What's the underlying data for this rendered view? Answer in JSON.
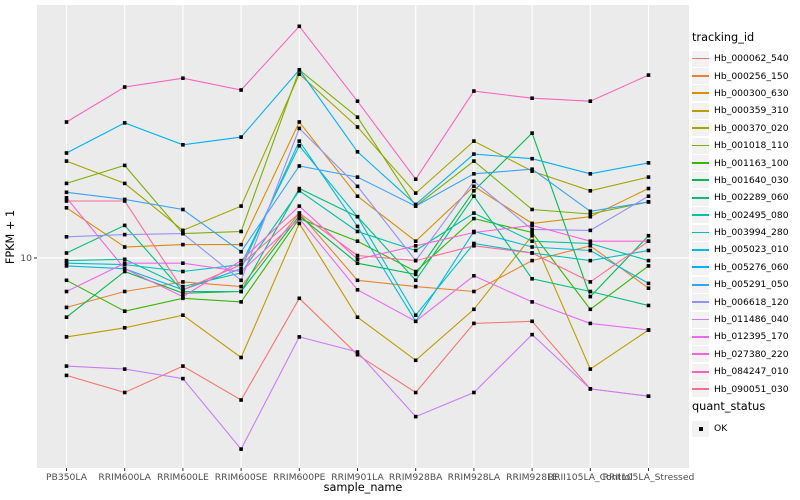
{
  "figure": {
    "background": "#FFFFFF",
    "panel_background": "#EBEBEB",
    "gridline_color": "#FFFFFF",
    "tick_text_color": "#4D4D4D",
    "axis_text_color": "#000000"
  },
  "chart_data": {
    "type": "line",
    "title": "",
    "xlabel": "sample_name",
    "ylabel": "FPKM + 1",
    "y_scale": "log10",
    "y_ticks": [
      10
    ],
    "ylim": [
      2.2,
      61
    ],
    "grid": "major-white-on-gray",
    "legend_position": "right",
    "point_shape": "filled-square",
    "point_color": "#000000",
    "categories": [
      "PB350LA",
      "RRIM600LA",
      "RRIM600LE",
      "RRIM600SE",
      "RRIM600PE",
      "RRIM901LA",
      "RRIM928BA",
      "RRIM928LA",
      "RRIM928LE",
      "RRII105LA_Control",
      "RRII105LA_Stressed"
    ],
    "series": [
      {
        "name": "Hb_000062_540",
        "color": "#F8766D",
        "values": [
          4.0,
          3.5,
          4.3,
          3.3,
          7.3,
          4.7,
          3.5,
          6.0,
          6.1,
          3.6,
          3.4
        ]
      },
      {
        "name": "Hb_000256_150",
        "color": "#EA8331",
        "values": [
          6.8,
          7.7,
          8.3,
          8.0,
          14.2,
          8.4,
          8.0,
          7.7,
          9.8,
          11.0,
          7.9
        ]
      },
      {
        "name": "Hb_000300_630",
        "color": "#D89000",
        "values": [
          14.8,
          10.9,
          11.1,
          11.1,
          28.9,
          16.2,
          11.4,
          17.5,
          13.1,
          13.8,
          17.2
        ]
      },
      {
        "name": "Hb_000359_310",
        "color": "#C09B00",
        "values": [
          5.4,
          5.8,
          6.4,
          4.6,
          13.1,
          6.3,
          4.5,
          6.7,
          11.9,
          4.2,
          5.7
        ]
      },
      {
        "name": "Hb_000370_020",
        "color": "#A3A500",
        "values": [
          21.3,
          17.9,
          12.4,
          15.0,
          42.0,
          27.8,
          16.6,
          24.9,
          19.7,
          16.9,
          18.8
        ]
      },
      {
        "name": "Hb_001018_110",
        "color": "#7CAE00",
        "values": [
          17.9,
          20.6,
          12.1,
          12.3,
          43.4,
          30.0,
          15.0,
          21.3,
          14.6,
          14.1,
          15.5
        ]
      },
      {
        "name": "Hb_001163_100",
        "color": "#39B600",
        "values": [
          8.4,
          6.6,
          7.3,
          7.1,
          13.6,
          11.4,
          9.0,
          13.6,
          12.2,
          6.7,
          9.4
        ]
      },
      {
        "name": "Hb_001640_030",
        "color": "#00BB4E",
        "values": [
          6.3,
          9.0,
          7.6,
          7.7,
          13.9,
          9.6,
          8.8,
          16.9,
          26.5,
          7.4,
          11.9
        ]
      },
      {
        "name": "Hb_002289_060",
        "color": "#00BF7D",
        "values": [
          10.4,
          12.9,
          7.7,
          7.7,
          17.2,
          13.8,
          8.4,
          16.2,
          8.5,
          7.7,
          6.9
        ]
      },
      {
        "name": "Hb_002495_080",
        "color": "#00C1A3",
        "values": [
          9.8,
          9.9,
          8.0,
          8.9,
          16.9,
          12.3,
          10.6,
          14.2,
          11.4,
          11.2,
          9.8
        ]
      },
      {
        "name": "Hb_003994_280",
        "color": "#00BFC4",
        "values": [
          9.6,
          9.5,
          9.0,
          9.5,
          24.0,
          13.8,
          6.4,
          11.2,
          10.4,
          9.8,
          10.6
        ]
      },
      {
        "name": "Hb_005023_010",
        "color": "#00BAE0",
        "values": [
          9.4,
          9.2,
          7.8,
          9.2,
          24.9,
          12.8,
          6.1,
          12.3,
          10.9,
          10.6,
          8.2
        ]
      },
      {
        "name": "Hb_005276_060",
        "color": "#00B0F6",
        "values": [
          22.7,
          28.7,
          24.2,
          25.7,
          43.4,
          22.9,
          15.2,
          22.5,
          21.7,
          19.3,
          21.0
        ]
      },
      {
        "name": "Hb_005291_050",
        "color": "#35A2FF",
        "values": [
          16.7,
          15.8,
          14.6,
          10.5,
          20.5,
          18.8,
          15.0,
          19.3,
          20.0,
          14.4,
          15.5
        ]
      },
      {
        "name": "Hb_006618_120",
        "color": "#9590FF",
        "values": [
          11.8,
          12.0,
          12.1,
          8.4,
          27.5,
          17.5,
          9.8,
          18.2,
          12.5,
          12.4,
          16.2
        ]
      },
      {
        "name": "Hb_011486_040",
        "color": "#C77CFF",
        "values": [
          4.3,
          4.2,
          3.9,
          2.25,
          5.4,
          4.8,
          2.9,
          3.5,
          5.5,
          3.6,
          3.4
        ]
      },
      {
        "name": "Hb_012395_170",
        "color": "#E76BF3",
        "values": [
          7.7,
          9.6,
          9.6,
          9.0,
          13.6,
          7.8,
          6.1,
          8.7,
          7.1,
          6.0,
          5.7
        ]
      },
      {
        "name": "Hb_027380_220",
        "color": "#FA62DB",
        "values": [
          16.0,
          9.2,
          7.4,
          9.8,
          15.0,
          9.9,
          11.0,
          12.2,
          12.9,
          11.4,
          11.4
        ]
      },
      {
        "name": "Hb_084247_010",
        "color": "#FF62BC",
        "values": [
          28.9,
          38.0,
          40.7,
          37.1,
          61.0,
          34.0,
          18.5,
          36.8,
          34.8,
          34.0,
          41.7
        ]
      },
      {
        "name": "Hb_090051_030",
        "color": "#FF6A98",
        "values": [
          15.6,
          15.6,
          7.8,
          9.5,
          14.2,
          10.2,
          9.8,
          11.0,
          10.4,
          8.3,
          11.4
        ]
      }
    ]
  },
  "legend": {
    "tracking": {
      "title": "tracking_id"
    },
    "quant": {
      "title": "quant_status",
      "items": [
        {
          "label": "OK"
        }
      ]
    }
  }
}
